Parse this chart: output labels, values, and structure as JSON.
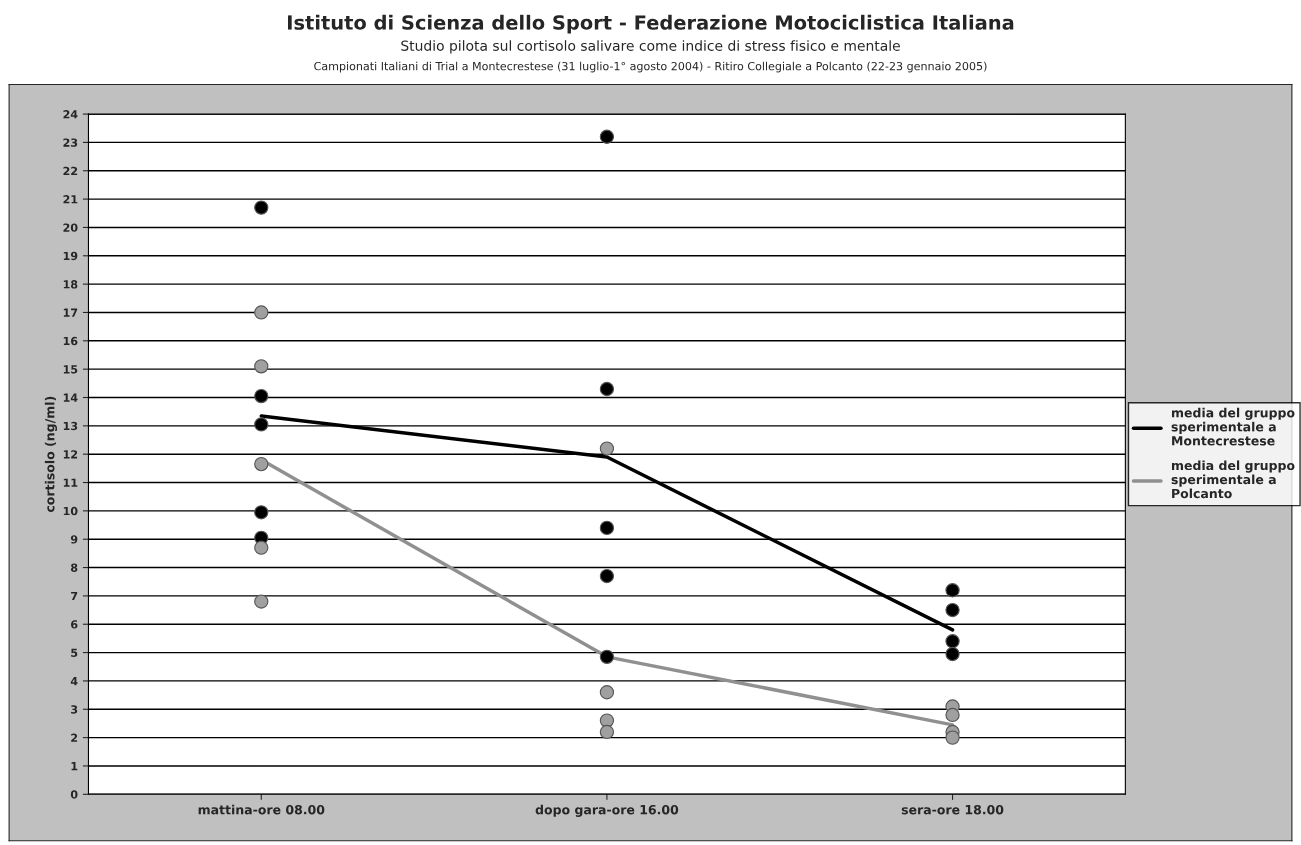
{
  "chart_data": {
    "type": "line",
    "title": "Istituto di Scienza dello Sport - Federazione Motociclistica Italiana",
    "subtitle": "Studio pilota sul cortisolo salivare come indice di stress fisico e mentale",
    "annotations": [
      "Campionati Italiani di Trial a Montecrestese (31 luglio-1° agosto 2004) - Ritiro Collegiale a Polcanto (22-23 gennaio 2005)"
    ],
    "ylabel": "cortisolo (ng/ml)",
    "categories": [
      "mattina-ore 08.00",
      "dopo gara-ore 16.00",
      "sera-ore 18.00"
    ],
    "ylim": [
      0,
      24
    ],
    "yticks": [
      0,
      1,
      2,
      3,
      4,
      5,
      6,
      7,
      8,
      9,
      10,
      11,
      12,
      13,
      14,
      15,
      16,
      17,
      18,
      19,
      20,
      21,
      22,
      23,
      24
    ],
    "grid": "y",
    "legend": "right",
    "marker": "none",
    "line_style": "solid",
    "series": [
      {
        "type": "scatter",
        "color": "#000000",
        "marker": "circle",
        "x": [
          "mattina-ore 08.00",
          "mattina-ore 08.00",
          "mattina-ore 08.00",
          "mattina-ore 08.00",
          "mattina-ore 08.00",
          "dopo gara-ore 16.00",
          "dopo gara-ore 16.00",
          "dopo gara-ore 16.00",
          "dopo gara-ore 16.00",
          "dopo gara-ore 16.00",
          "sera-ore 18.00",
          "sera-ore 18.00",
          "sera-ore 18.00",
          "sera-ore 18.00"
        ],
        "values": [
          20.7,
          14.05,
          13.05,
          9.95,
          9.05,
          23.2,
          14.3,
          9.4,
          7.7,
          4.85,
          7.2,
          6.5,
          5.4,
          4.95
        ]
      },
      {
        "type": "scatter",
        "color": "#a0a0a0",
        "marker": "circle",
        "x": [
          "mattina-ore 08.00",
          "mattina-ore 08.00",
          "mattina-ore 08.00",
          "mattina-ore 08.00",
          "mattina-ore 08.00",
          "dopo gara-ore 16.00",
          "dopo gara-ore 16.00",
          "dopo gara-ore 16.00",
          "dopo gara-ore 16.00",
          "sera-ore 18.00",
          "sera-ore 18.00",
          "sera-ore 18.00",
          "sera-ore 18.00"
        ],
        "values": [
          17,
          15.1,
          11.65,
          8.7,
          6.8,
          12.2,
          3.6,
          2.6,
          2.2,
          3.1,
          2.8,
          2.2,
          2.0
        ]
      },
      {
        "name": "media del gruppo sperimentale a Montecrestese",
        "color": "#000000",
        "values": [
          13.35,
          11.9,
          5.8
        ]
      },
      {
        "name": "media del gruppo sperimentale a Polcanto",
        "color": "#909090",
        "values": [
          11.8,
          4.85,
          2.45
        ]
      }
    ]
  }
}
